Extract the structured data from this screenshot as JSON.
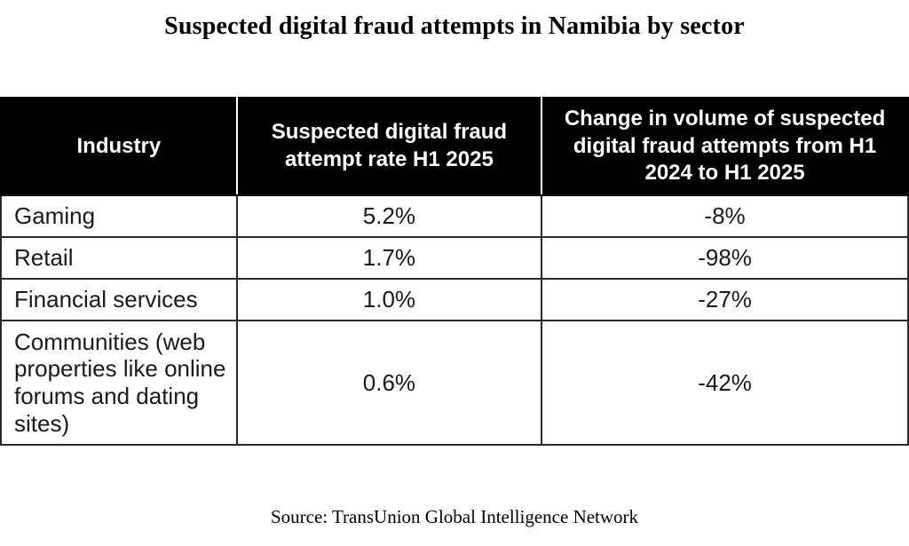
{
  "title": "Suspected digital fraud attempts in Namibia by sector",
  "source": "Source: TransUnion Global Intelligence Network",
  "colors": {
    "header_bg": "#000000",
    "header_text": "#ffffff",
    "body_text": "#1a1a1a",
    "border": "#2b2b2b",
    "header_divider": "#ffffff",
    "background": "#ffffff"
  },
  "table": {
    "columns": [
      {
        "label": "Industry"
      },
      {
        "label": "Suspected digital fraud attempt rate H1 2025"
      },
      {
        "label": "Change in volume of suspected digital fraud attempts from H1 2024 to H1 2025"
      }
    ],
    "rows": [
      {
        "industry": "Gaming",
        "rate": "5.2%",
        "change": "-8%"
      },
      {
        "industry": "Retail",
        "rate": "1.7%",
        "change": "-98%"
      },
      {
        "industry": "Financial services",
        "rate": "1.0%",
        "change": "-27%"
      },
      {
        "industry": "Communities (web properties like online forums and dating sites)",
        "rate": "0.6%",
        "change": "-42%"
      }
    ]
  },
  "chart_data": {
    "type": "table",
    "title": "Suspected digital fraud attempts in Namibia by sector",
    "columns": [
      "Industry",
      "Suspected digital fraud attempt rate H1 2025",
      "Change in volume of suspected digital fraud attempts from H1 2024 to H1 2025"
    ],
    "categories": [
      "Gaming",
      "Retail",
      "Financial services",
      "Communities (web properties like online forums and dating sites)"
    ],
    "series": [
      {
        "name": "Suspected digital fraud attempt rate H1 2025",
        "unit": "%",
        "values": [
          5.2,
          1.7,
          1.0,
          0.6
        ]
      },
      {
        "name": "Change in volume of suspected digital fraud attempts from H1 2024 to H1 2025",
        "unit": "%",
        "values": [
          -8,
          -98,
          -27,
          -42
        ]
      }
    ],
    "source": "Source: TransUnion Global Intelligence Network",
    "legend_position": "none",
    "grid": "table-borders"
  }
}
